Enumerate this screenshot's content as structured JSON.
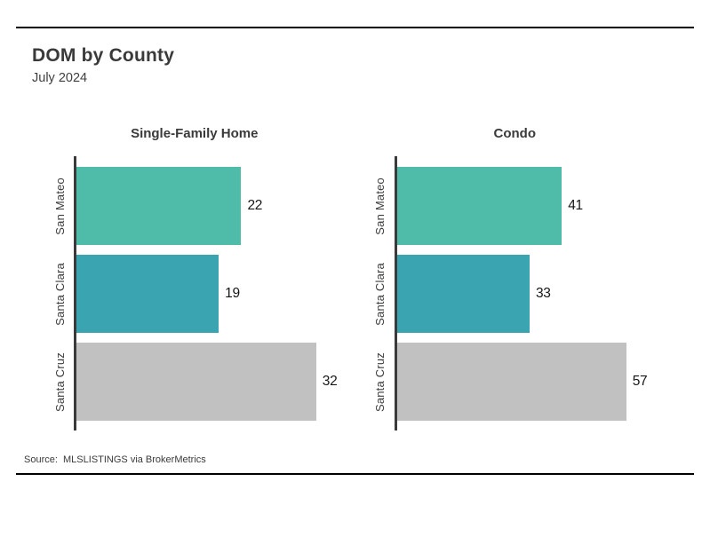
{
  "page": {
    "title": "DOM by County",
    "subtitle": "July 2024",
    "source": "Source:  MLSLISTINGS via BrokerMetrics"
  },
  "colors": {
    "bar_palette": [
      "#4fbcaa",
      "#3aa4b1",
      "#c1c1c1"
    ],
    "axis": "#3a3a3a",
    "text": "#3a3a3a",
    "value_text": "#161616",
    "rule": "#000000",
    "background": "#ffffff"
  },
  "chart_data": [
    {
      "type": "bar",
      "orientation": "horizontal",
      "title": "Single-Family Home",
      "categories": [
        "San Mateo",
        "Santa Clara",
        "Santa Cruz"
      ],
      "values": [
        22,
        19,
        32
      ],
      "bar_colors": [
        "#4fbcaa",
        "#3aa4b1",
        "#c1c1c1"
      ],
      "xlim": [
        0,
        36
      ],
      "grid": false,
      "legend": "none",
      "value_labels": "outside-end",
      "xlabel": "",
      "ylabel": ""
    },
    {
      "type": "bar",
      "orientation": "horizontal",
      "title": "Condo",
      "categories": [
        "San Mateo",
        "Santa Clara",
        "Santa Cruz"
      ],
      "values": [
        41,
        33,
        57
      ],
      "bar_colors": [
        "#4fbcaa",
        "#3aa4b1",
        "#c1c1c1"
      ],
      "xlim": [
        0,
        67
      ],
      "grid": false,
      "legend": "none",
      "value_labels": "outside-end",
      "xlabel": "",
      "ylabel": ""
    }
  ]
}
